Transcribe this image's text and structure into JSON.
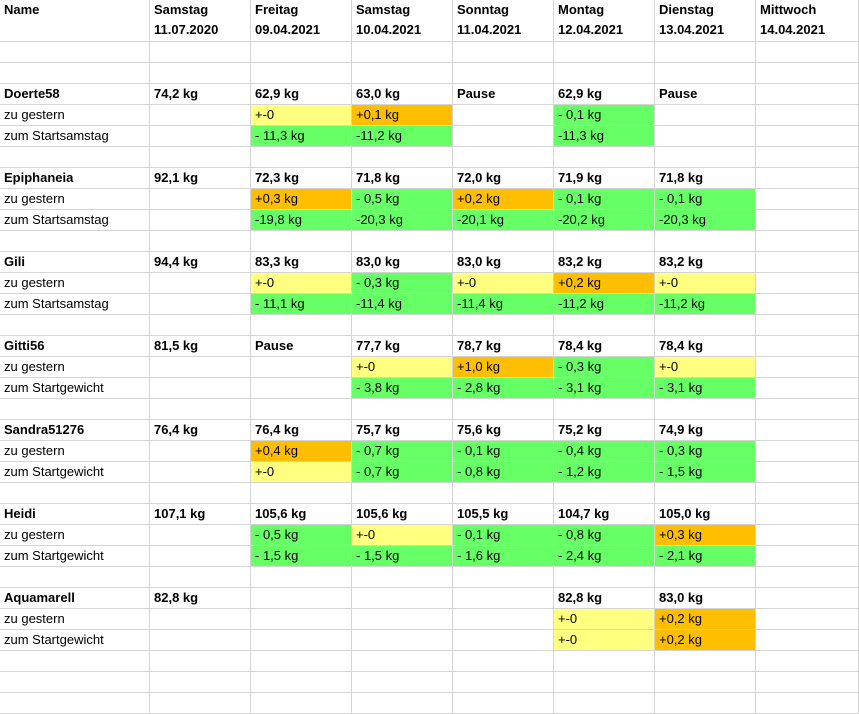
{
  "header": {
    "name_label": "Name",
    "days": [
      {
        "day": "Samstag",
        "date": "11.07.2020"
      },
      {
        "day": "Freitag",
        "date": "09.04.2021"
      },
      {
        "day": "Samstag",
        "date": "10.04.2021"
      },
      {
        "day": "Sonntag",
        "date": "11.04.2021"
      },
      {
        "day": "Montag",
        "date": "12.04.2021"
      },
      {
        "day": "Dienstag",
        "date": "13.04.2021"
      },
      {
        "day": "Mittwoch",
        "date": "14.04.2021"
      }
    ]
  },
  "colors": {
    "yellow": "#ffff80",
    "orange": "#ffbf00",
    "green": "#66ff66",
    "gridline": "#d4d4d4"
  },
  "groups": [
    {
      "name": "Doerte58",
      "rows": [
        {
          "label": "",
          "cells": [
            {
              "v": "74,2 kg"
            },
            {
              "v": "62,9 kg"
            },
            {
              "v": "63,0 kg"
            },
            {
              "v": "Pause"
            },
            {
              "v": "62,9 kg"
            },
            {
              "v": "Pause"
            },
            {
              "v": ""
            }
          ]
        },
        {
          "label": "zu gestern",
          "cells": [
            {
              "v": ""
            },
            {
              "v": "+-0",
              "c": "yellow"
            },
            {
              "v": "+0,1 kg",
              "c": "orange"
            },
            {
              "v": ""
            },
            {
              "v": "- 0,1 kg",
              "c": "green"
            },
            {
              "v": ""
            },
            {
              "v": ""
            }
          ]
        },
        {
          "label": "zum Startsamstag",
          "cells": [
            {
              "v": ""
            },
            {
              "v": "- 11,3 kg",
              "c": "green"
            },
            {
              "v": "-11,2 kg",
              "c": "green"
            },
            {
              "v": ""
            },
            {
              "v": "-11,3 kg",
              "c": "green"
            },
            {
              "v": ""
            },
            {
              "v": ""
            }
          ]
        }
      ]
    },
    {
      "name": "Epiphaneia",
      "rows": [
        {
          "label": "",
          "cells": [
            {
              "v": "92,1 kg"
            },
            {
              "v": "72,3 kg"
            },
            {
              "v": "71,8 kg"
            },
            {
              "v": "72,0 kg"
            },
            {
              "v": "71,9 kg"
            },
            {
              "v": "71,8 kg"
            },
            {
              "v": ""
            }
          ]
        },
        {
          "label": "zu gestern",
          "cells": [
            {
              "v": ""
            },
            {
              "v": "+0,3 kg",
              "c": "orange"
            },
            {
              "v": "- 0,5 kg",
              "c": "green"
            },
            {
              "v": "+0,2 kg",
              "c": "orange"
            },
            {
              "v": "- 0,1 kg",
              "c": "green"
            },
            {
              "v": "- 0,1 kg",
              "c": "green"
            },
            {
              "v": ""
            }
          ]
        },
        {
          "label": "zum Startsamstag",
          "cells": [
            {
              "v": ""
            },
            {
              "v": "-19,8 kg",
              "c": "green"
            },
            {
              "v": "-20,3 kg",
              "c": "green"
            },
            {
              "v": "-20,1 kg",
              "c": "green"
            },
            {
              "v": "-20,2 kg",
              "c": "green"
            },
            {
              "v": "-20,3 kg",
              "c": "green"
            },
            {
              "v": ""
            }
          ]
        }
      ]
    },
    {
      "name": "Gili",
      "rows": [
        {
          "label": "",
          "cells": [
            {
              "v": "94,4 kg"
            },
            {
              "v": "83,3 kg"
            },
            {
              "v": "83,0 kg"
            },
            {
              "v": "83,0 kg"
            },
            {
              "v": "83,2 kg"
            },
            {
              "v": "83,2 kg"
            },
            {
              "v": ""
            }
          ]
        },
        {
          "label": "zu gestern",
          "cells": [
            {
              "v": ""
            },
            {
              "v": "+-0",
              "c": "yellow"
            },
            {
              "v": "- 0,3 kg",
              "c": "green"
            },
            {
              "v": "+-0",
              "c": "yellow"
            },
            {
              "v": "+0,2 kg",
              "c": "orange"
            },
            {
              "v": "+-0",
              "c": "yellow"
            },
            {
              "v": ""
            }
          ]
        },
        {
          "label": "zum Startsamstag",
          "cells": [
            {
              "v": ""
            },
            {
              "v": "- 11,1 kg",
              "c": "green"
            },
            {
              "v": "-11,4 kg",
              "c": "green"
            },
            {
              "v": "-11,4 kg",
              "c": "green"
            },
            {
              "v": "-11,2 kg",
              "c": "green"
            },
            {
              "v": "-11,2 kg",
              "c": "green"
            },
            {
              "v": ""
            }
          ]
        }
      ]
    },
    {
      "name": "Gitti56",
      "rows": [
        {
          "label": "",
          "cells": [
            {
              "v": "81,5 kg"
            },
            {
              "v": "Pause"
            },
            {
              "v": "77,7 kg"
            },
            {
              "v": "78,7 kg"
            },
            {
              "v": "78,4 kg"
            },
            {
              "v": "78,4 kg"
            },
            {
              "v": ""
            }
          ]
        },
        {
          "label": "zu gestern",
          "cells": [
            {
              "v": ""
            },
            {
              "v": ""
            },
            {
              "v": "+-0",
              "c": "yellow"
            },
            {
              "v": "+1,0 kg",
              "c": "orange"
            },
            {
              "v": "- 0,3 kg",
              "c": "green"
            },
            {
              "v": "+-0",
              "c": "yellow"
            },
            {
              "v": ""
            }
          ]
        },
        {
          "label": "zum Startgewicht",
          "cells": [
            {
              "v": ""
            },
            {
              "v": ""
            },
            {
              "v": "- 3,8 kg",
              "c": "green"
            },
            {
              "v": "- 2,8 kg",
              "c": "green"
            },
            {
              "v": "- 3,1 kg",
              "c": "green"
            },
            {
              "v": "- 3,1 kg",
              "c": "green"
            },
            {
              "v": ""
            }
          ]
        }
      ]
    },
    {
      "name": "Sandra51276",
      "rows": [
        {
          "label": "",
          "cells": [
            {
              "v": "76,4 kg"
            },
            {
              "v": "76,4 kg"
            },
            {
              "v": "75,7 kg"
            },
            {
              "v": "75,6 kg"
            },
            {
              "v": "75,2 kg"
            },
            {
              "v": "74,9 kg"
            },
            {
              "v": ""
            }
          ]
        },
        {
          "label": "zu gestern",
          "cells": [
            {
              "v": ""
            },
            {
              "v": "+0,4 kg",
              "c": "orange"
            },
            {
              "v": "- 0,7 kg",
              "c": "green"
            },
            {
              "v": "- 0,1 kg",
              "c": "green"
            },
            {
              "v": "- 0,4 kg",
              "c": "green"
            },
            {
              "v": "- 0,3 kg",
              "c": "green"
            },
            {
              "v": ""
            }
          ]
        },
        {
          "label": "zum Startgewicht",
          "cells": [
            {
              "v": ""
            },
            {
              "v": "+-0",
              "c": "yellow"
            },
            {
              "v": "- 0,7 kg",
              "c": "green"
            },
            {
              "v": "- 0,8 kg",
              "c": "green"
            },
            {
              "v": "- 1,2 kg",
              "c": "green"
            },
            {
              "v": "- 1,5 kg",
              "c": "green"
            },
            {
              "v": ""
            }
          ]
        }
      ]
    },
    {
      "name": "Heidi",
      "rows": [
        {
          "label": "",
          "cells": [
            {
              "v": "107,1 kg"
            },
            {
              "v": "105,6 kg"
            },
            {
              "v": "105,6 kg"
            },
            {
              "v": "105,5 kg"
            },
            {
              "v": "104,7 kg"
            },
            {
              "v": "105,0 kg"
            },
            {
              "v": ""
            }
          ]
        },
        {
          "label": "zu gestern",
          "cells": [
            {
              "v": ""
            },
            {
              "v": "- 0,5 kg",
              "c": "green"
            },
            {
              "v": "+-0",
              "c": "yellow"
            },
            {
              "v": "- 0,1 kg",
              "c": "green"
            },
            {
              "v": "- 0,8 kg",
              "c": "green"
            },
            {
              "v": "+0,3 kg",
              "c": "orange"
            },
            {
              "v": ""
            }
          ]
        },
        {
          "label": "zum Startgewicht",
          "cells": [
            {
              "v": ""
            },
            {
              "v": "- 1,5 kg",
              "c": "green"
            },
            {
              "v": "- 1,5 kg",
              "c": "green"
            },
            {
              "v": "- 1,6 kg",
              "c": "green"
            },
            {
              "v": "- 2,4 kg",
              "c": "green"
            },
            {
              "v": "- 2,1 kg",
              "c": "green"
            },
            {
              "v": ""
            }
          ]
        }
      ]
    },
    {
      "name": "Aquamarell",
      "rows": [
        {
          "label": "",
          "cells": [
            {
              "v": "82,8 kg"
            },
            {
              "v": ""
            },
            {
              "v": ""
            },
            {
              "v": ""
            },
            {
              "v": "82,8 kg"
            },
            {
              "v": "83,0 kg"
            },
            {
              "v": ""
            }
          ]
        },
        {
          "label": "zu gestern",
          "cells": [
            {
              "v": ""
            },
            {
              "v": ""
            },
            {
              "v": ""
            },
            {
              "v": ""
            },
            {
              "v": "+-0",
              "c": "yellow"
            },
            {
              "v": "+0,2 kg",
              "c": "orange"
            },
            {
              "v": ""
            }
          ]
        },
        {
          "label": "zum Startgewicht",
          "cells": [
            {
              "v": ""
            },
            {
              "v": ""
            },
            {
              "v": ""
            },
            {
              "v": ""
            },
            {
              "v": "+-0",
              "c": "yellow"
            },
            {
              "v": "+0,2 kg",
              "c": "orange"
            },
            {
              "v": ""
            }
          ]
        }
      ]
    }
  ]
}
